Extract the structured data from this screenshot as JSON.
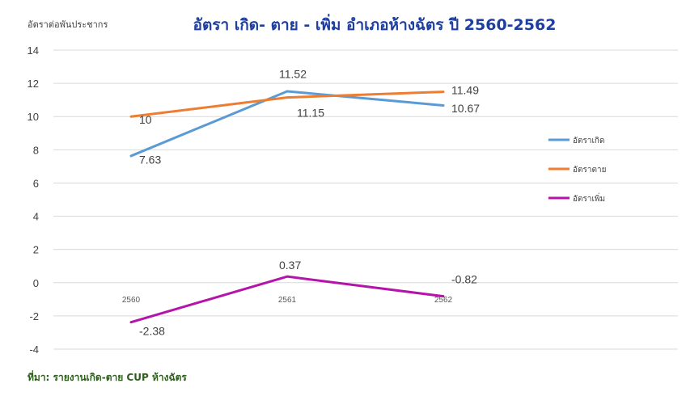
{
  "chart_data": {
    "type": "line",
    "title": "อัตรา เกิด- ตาย - เพิ่ม อำเภอห้างฉัตร ปี 2560-2562",
    "ylabel": "อัตราต่อพันประชากร",
    "xlabel": "",
    "categories": [
      "2560",
      "2561",
      "2562"
    ],
    "ylim": [
      -4,
      14
    ],
    "yticks": [
      "14",
      "12",
      "10",
      "8",
      "6",
      "4",
      "2",
      "0",
      "-2",
      "-4"
    ],
    "grid": true,
    "legend_position": "right",
    "series": [
      {
        "name": "อัตราเกิด",
        "values": [
          7.63,
          11.52,
          10.67
        ],
        "labels": [
          "7.63",
          "11.52",
          "10.67"
        ],
        "color": "#5b9bd5"
      },
      {
        "name": "อัตราตาย",
        "values": [
          10,
          11.15,
          11.49
        ],
        "labels": [
          "10",
          "11.15",
          "11.49"
        ],
        "color": "#ed7d31"
      },
      {
        "name": "อัตราเพิ่ม",
        "values": [
          -2.38,
          0.37,
          -0.82
        ],
        "labels": [
          "-2.38",
          "0.37",
          "-0.82"
        ],
        "color": "#b414a8"
      }
    ]
  },
  "source": "ที่มา: รายงานเกิด-ตาย CUP ห้างฉัตร"
}
